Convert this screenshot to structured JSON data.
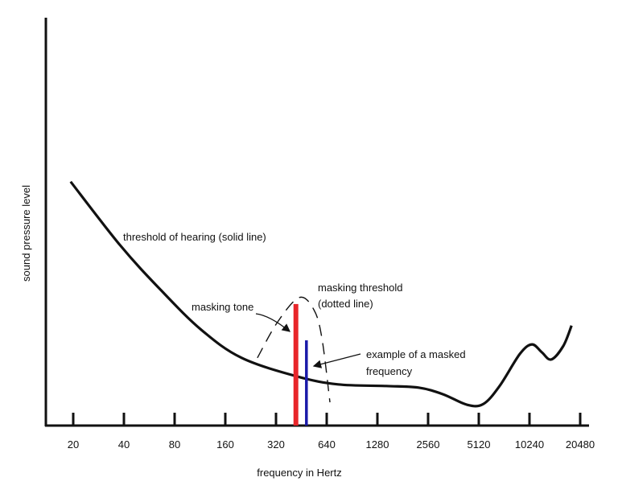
{
  "chart_data": {
    "type": "line",
    "title": "",
    "xlabel": "frequency in Hertz",
    "ylabel": "sound pressure level",
    "x_scale": "log2",
    "x_ticks": [
      20,
      40,
      80,
      160,
      320,
      640,
      1280,
      2560,
      5120,
      10240,
      20480
    ],
    "x_tick_labels": [
      "20",
      "40",
      "80",
      "160",
      "320",
      "640",
      "1280",
      "2560",
      "5120",
      "10240",
      "20480"
    ],
    "ylim": [
      0,
      100
    ],
    "grid": false,
    "series": [
      {
        "name": "threshold of hearing (solid line)",
        "style": "solid",
        "color": "#111111",
        "points": [
          [
            19.3,
            59.8
          ],
          [
            38,
            44.2
          ],
          [
            66,
            33.3
          ],
          [
            115,
            23.5
          ],
          [
            200,
            16.6
          ],
          [
            431,
            12.0
          ],
          [
            748,
            10.1
          ],
          [
            1443,
            9.7
          ],
          [
            2248,
            9.3
          ],
          [
            3130,
            7.7
          ],
          [
            4369,
            5.1
          ],
          [
            5453,
            5.3
          ],
          [
            6803,
            9.7
          ],
          [
            8990,
            17.6
          ],
          [
            10600,
            19.9
          ],
          [
            12100,
            18.0
          ],
          [
            13780,
            16.2
          ],
          [
            16250,
            19.5
          ],
          [
            18200,
            24.5
          ]
        ]
      },
      {
        "name": "masking threshold (dotted line)",
        "style": "dashed",
        "color": "#111111",
        "points": [
          [
            248,
            16.6
          ],
          [
            327,
            25.4
          ],
          [
            440,
            31.4
          ],
          [
            537,
            28.4
          ],
          [
            599,
            21.5
          ],
          [
            669,
            5.7
          ]
        ]
      }
    ],
    "bars": [
      {
        "name": "masking tone",
        "frequency": 420,
        "level": 29.8,
        "color": "#e8262a"
      },
      {
        "name": "example of a masked frequency",
        "frequency": 485,
        "level": 20.9,
        "color": "#1a1aa8"
      }
    ],
    "annotations": {
      "threshold": "threshold of hearing (solid line)",
      "masking_threshold_1": "masking threshold",
      "masking_threshold_2": "(dotted line)",
      "masking_tone": "masking tone",
      "masked_1": "example of a masked",
      "masked_2": "frequency"
    }
  }
}
